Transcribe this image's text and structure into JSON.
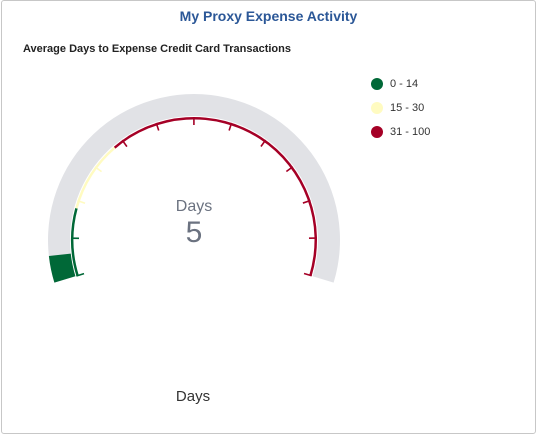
{
  "tile": {
    "title": "My Proxy Expense Activity"
  },
  "chart_data": {
    "type": "gauge",
    "title": "Average Days to Expense Credit Card Transactions",
    "center_label": "Days",
    "value": 5,
    "min": 0,
    "max": 100,
    "xlabel": "Days",
    "bands": [
      {
        "name": "0 - 14",
        "from": 0,
        "to": 14,
        "color": "#006837"
      },
      {
        "name": "15 - 30",
        "from": 15,
        "to": 30,
        "color": "#fffbc1"
      },
      {
        "name": "31 - 100",
        "from": 31,
        "to": 100,
        "color": "#a50026"
      }
    ],
    "track_color": "#e1e2e6",
    "legend_position": "top-right"
  }
}
